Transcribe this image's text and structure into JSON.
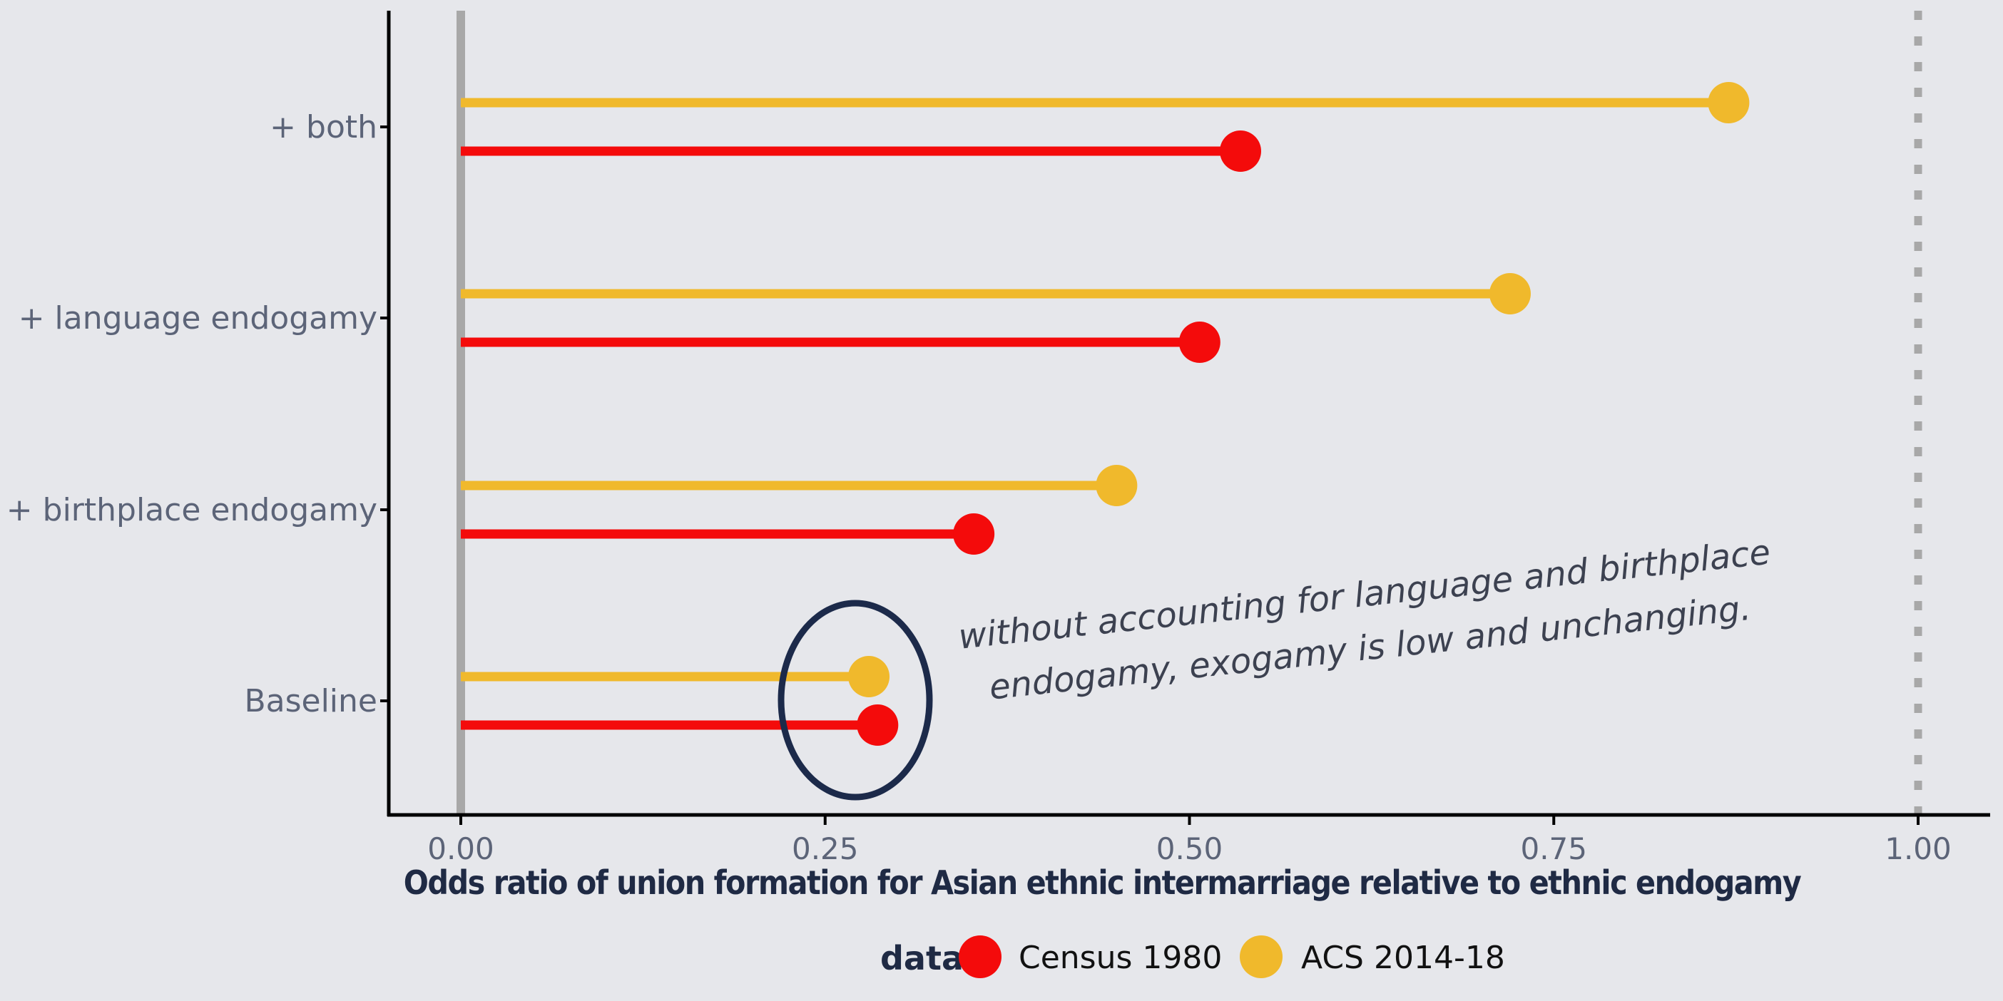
{
  "chart_data": {
    "type": "lollipop",
    "categories": [
      "+ both",
      "+ language endogamy",
      "+ birthplace endogamy",
      "Baseline"
    ],
    "series": [
      {
        "name": "ACS 2014-18",
        "color": "#f0b92c",
        "values": [
          0.87,
          0.72,
          0.45,
          0.28
        ]
      },
      {
        "name": "Census 1980",
        "color": "#f40b0b",
        "values": [
          0.535,
          0.507,
          0.352,
          0.286
        ]
      }
    ],
    "xlabel": "Odds ratio of union formation for Asian ethnic intermarriage relative to ethnic endogamy",
    "ylabel": "",
    "xlim": [
      0,
      1.05
    ],
    "x_ticks": [
      "0.00",
      "0.25",
      "0.50",
      "0.75",
      "1.00"
    ],
    "x_tick_values": [
      0,
      0.25,
      0.5,
      0.75,
      1.0
    ],
    "reference_lines": [
      {
        "x": 0,
        "style": "solid",
        "color": "#a8a8a8"
      },
      {
        "x": 1.0,
        "style": "dotted",
        "color": "#a8a8a8"
      }
    ],
    "legend": {
      "title": "data",
      "placement": "bottom",
      "entries": [
        "Census 1980",
        "ACS 2014-18"
      ]
    },
    "annotation": {
      "lines": [
        "without accounting for language and birthplace",
        "endogamy, exogamy is low and unchanging."
      ],
      "highlight_category": "Baseline"
    },
    "grid": false
  }
}
